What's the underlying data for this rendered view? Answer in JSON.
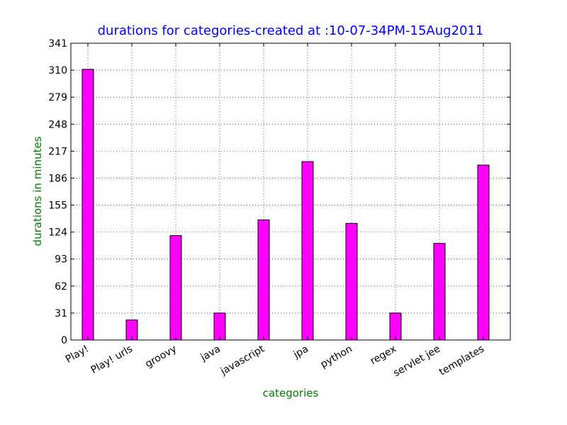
{
  "chart_data": {
    "type": "bar",
    "title": "durations for categories-created at :10-07-34PM-15Aug2011",
    "xlabel": "categories",
    "ylabel": "durations in  minutes",
    "categories": [
      "Play!",
      "Play! urls",
      "groovy",
      "java",
      "javascript",
      "jpa",
      "python",
      "regex",
      "servlet jee",
      "templates"
    ],
    "values": [
      311,
      23,
      120,
      31,
      138,
      205,
      134,
      31,
      111,
      201
    ],
    "yticks": [
      "0",
      "31",
      "62",
      "93",
      "124",
      "155",
      "186",
      "217",
      "248",
      "279",
      "310",
      "341"
    ],
    "ylim": [
      0,
      341
    ],
    "grid": true,
    "colors": {
      "bar": "#ff00ff",
      "bar_edge": "#000000",
      "title": "#0000ff",
      "axis_label": "#008000"
    }
  }
}
